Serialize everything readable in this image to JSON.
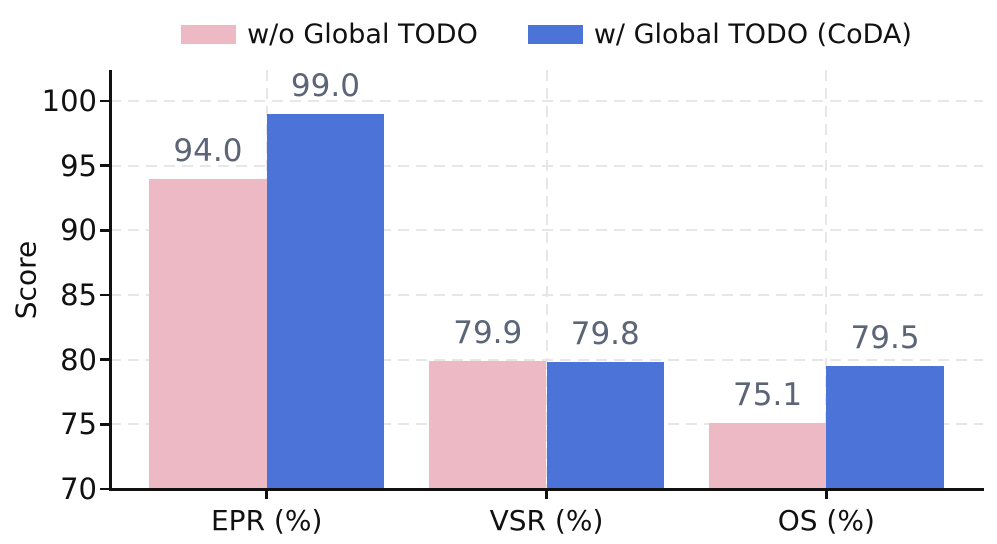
{
  "chart_data": {
    "type": "bar",
    "title": "",
    "categories": [
      "EPR (%)",
      "VSR (%)",
      "OS (%)"
    ],
    "series": [
      {
        "name": "w/o Global TODO",
        "color": "#ecb9c5",
        "values": [
          94.0,
          79.9,
          75.1
        ]
      },
      {
        "name": "w/ Global TODO (CoDA)",
        "color": "#4b73d8",
        "values": [
          99.0,
          79.8,
          79.5
        ]
      }
    ],
    "xlabel": "",
    "ylabel": "Score",
    "ylim": [
      70,
      102.4
    ],
    "yticks": [
      70,
      75,
      80,
      85,
      90,
      95,
      100
    ],
    "xlim": [
      -0.56,
      2.56
    ],
    "bar_width": 0.42,
    "grid": true,
    "grid_style": "dashed",
    "legend_position": "top center",
    "value_labels": true,
    "value_label_decimals": 1,
    "colors": {
      "axis": "#111111",
      "grid": "#e7e7e7",
      "tick_label": "#111111",
      "value_label": "#5c6577",
      "background": "#ffffff"
    }
  }
}
